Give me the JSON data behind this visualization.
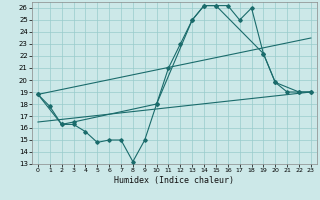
{
  "xlabel": "Humidex (Indice chaleur)",
  "background_color": "#cce8e8",
  "line_color": "#1a6b6b",
  "grid_color": "#99cccc",
  "xlim": [
    -0.5,
    23.5
  ],
  "ylim": [
    13,
    26.5
  ],
  "yticks": [
    13,
    14,
    15,
    16,
    17,
    18,
    19,
    20,
    21,
    22,
    23,
    24,
    25,
    26
  ],
  "xticks": [
    0,
    1,
    2,
    3,
    4,
    5,
    6,
    7,
    8,
    9,
    10,
    11,
    12,
    13,
    14,
    15,
    16,
    17,
    18,
    19,
    20,
    21,
    22,
    23
  ],
  "line1_x": [
    0,
    1,
    2,
    3,
    4,
    5,
    6,
    7,
    8,
    9,
    10,
    11,
    12,
    13,
    14,
    15,
    16,
    17,
    18,
    19,
    20,
    21,
    22,
    23
  ],
  "line1_y": [
    18.8,
    17.8,
    16.3,
    16.3,
    15.7,
    14.8,
    15.0,
    15.0,
    13.2,
    15.0,
    18.0,
    21.0,
    23.0,
    25.0,
    26.2,
    26.2,
    26.2,
    25.0,
    26.0,
    22.2,
    19.8,
    19.0,
    19.0,
    19.0
  ],
  "line2_x": [
    0,
    2,
    3,
    10,
    13,
    14,
    15,
    19,
    20,
    22,
    23
  ],
  "line2_y": [
    18.8,
    16.3,
    16.5,
    18.0,
    25.0,
    26.2,
    26.2,
    22.2,
    19.8,
    19.0,
    19.0
  ],
  "line3_x": [
    0,
    23
  ],
  "line3_y": [
    18.8,
    23.5
  ],
  "line4_x": [
    0,
    23
  ],
  "line4_y": [
    16.5,
    19.0
  ]
}
